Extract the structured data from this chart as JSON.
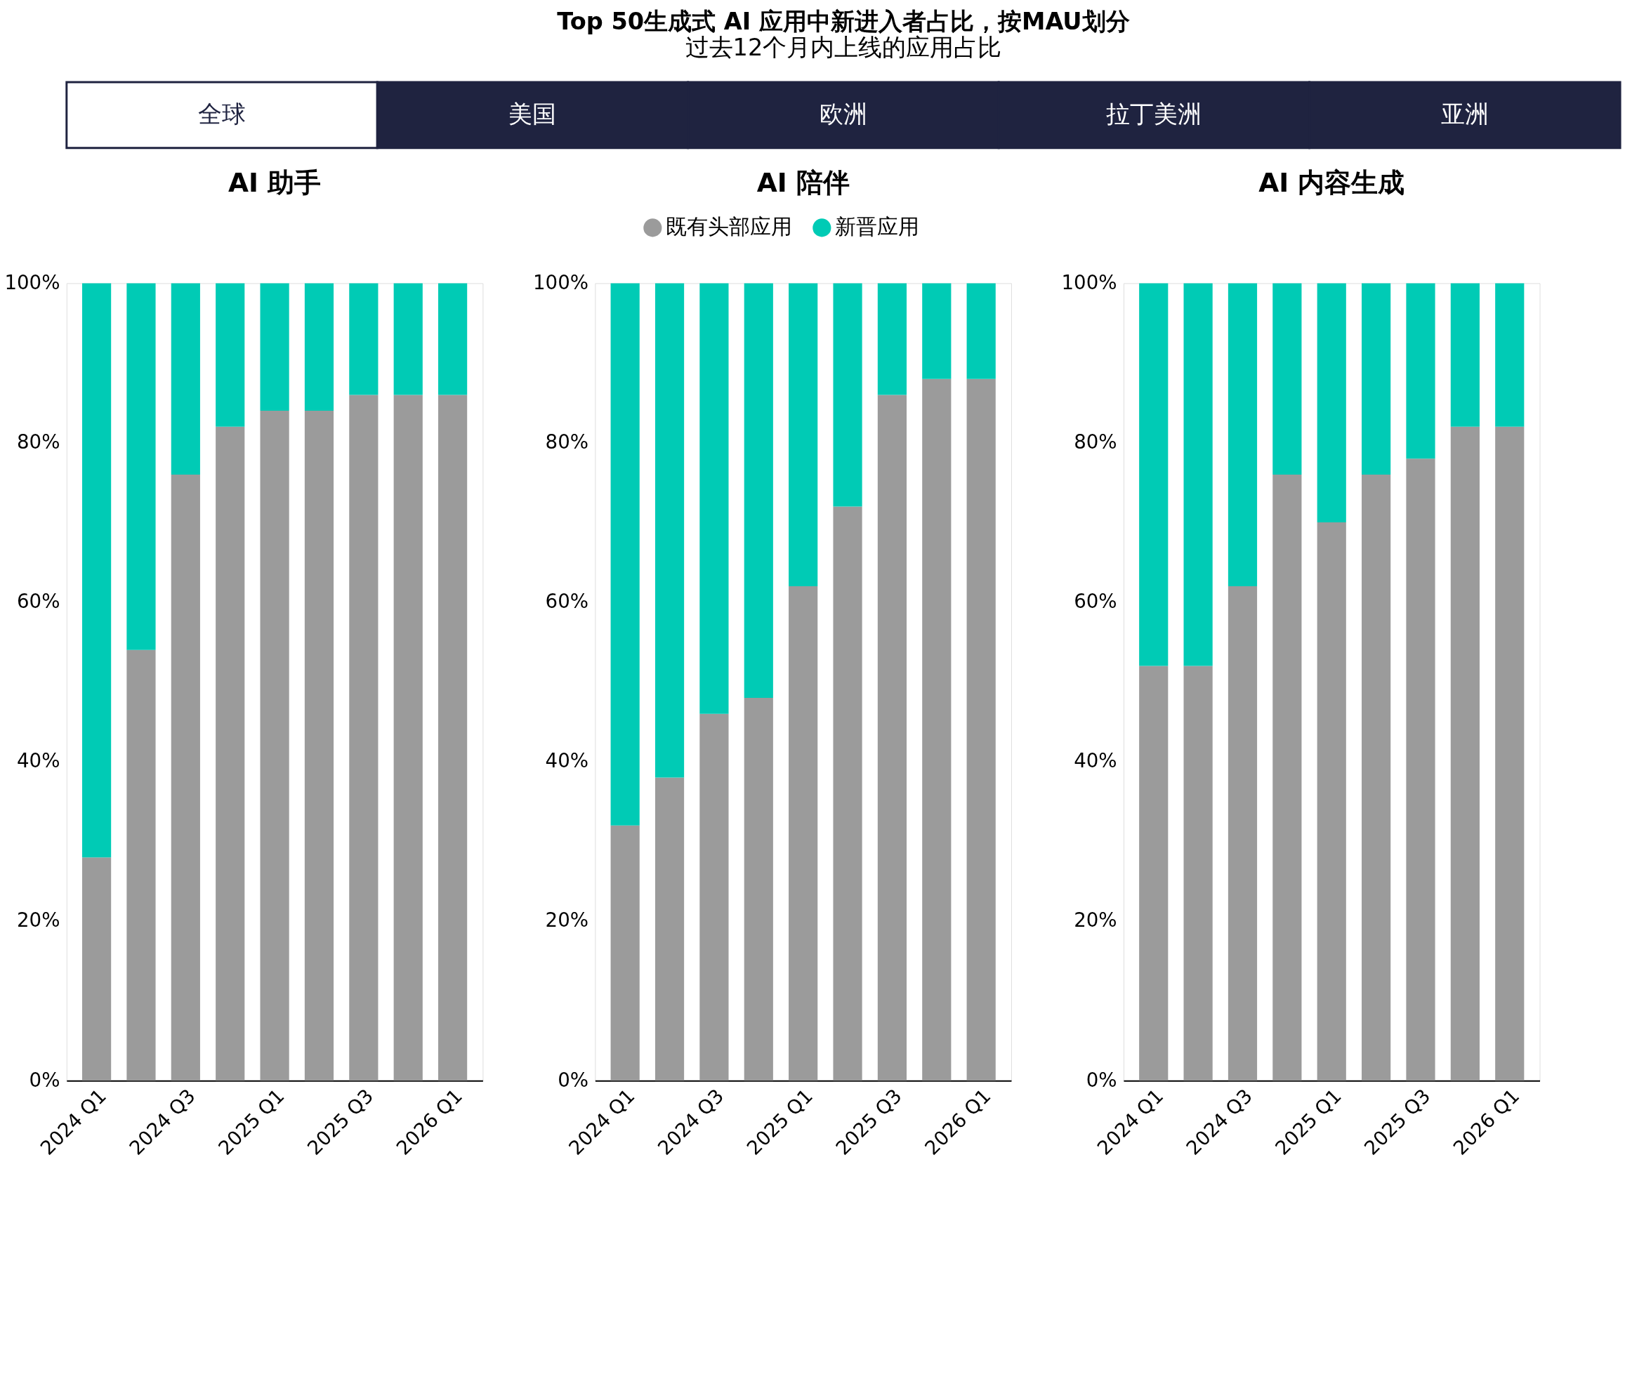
{
  "chart_data": [
    {
      "type": "other",
      "title": "Top 50生成式 AI 应用中新进入者占比，按MAU划分",
      "subtitle": "过去12个月内上线的应用占比",
      "annotations": [
        "全球",
        "美国",
        "欧洲",
        "拉丁美洲",
        "亚洲"
      ]
    },
    {
      "type": "bar",
      "title": "AI 助手",
      "stacked": true,
      "legend": "top",
      "categories": [
        "2024 Q1",
        null,
        "2024 Q3",
        null,
        "2025 Q1",
        null,
        "2025 Q3",
        null,
        "2026 Q1"
      ],
      "series": [
        {
          "name": "既有头部应用",
          "color": "#9b9b9b",
          "values": [
            28,
            54,
            76,
            82,
            84,
            84,
            86,
            86,
            86
          ]
        },
        {
          "name": "新晋应用",
          "color": "#00cbb5",
          "values": [
            72,
            46,
            24,
            18,
            16,
            16,
            14,
            14,
            14
          ]
        }
      ],
      "ylim": [
        0,
        100
      ],
      "yticks": [
        {
          "value": 0,
          "label": "0%"
        },
        {
          "value": 20,
          "label": "20%"
        },
        {
          "value": 40,
          "label": "40%"
        },
        {
          "value": 60,
          "label": "60%"
        },
        {
          "value": 80,
          "label": "80%"
        },
        {
          "value": 100,
          "label": "100%"
        }
      ],
      "grid": false
    },
    {
      "type": "bar",
      "title": "AI 陪伴",
      "stacked": true,
      "legend": "top",
      "categories": [
        "2024 Q1",
        null,
        "2024 Q3",
        null,
        "2025 Q1",
        null,
        "2025 Q3",
        null,
        "2026 Q1"
      ],
      "series": [
        {
          "name": "既有头部应用",
          "color": "#9b9b9b",
          "values": [
            32,
            38,
            46,
            48,
            62,
            72,
            86,
            88,
            88
          ]
        },
        {
          "name": "新晋应用",
          "color": "#00cbb5",
          "values": [
            68,
            62,
            54,
            52,
            38,
            28,
            14,
            12,
            12
          ]
        }
      ],
      "ylim": [
        0,
        100
      ],
      "yticks": [
        {
          "value": 0,
          "label": "0%"
        },
        {
          "value": 20,
          "label": "20%"
        },
        {
          "value": 40,
          "label": "40%"
        },
        {
          "value": 60,
          "label": "60%"
        },
        {
          "value": 80,
          "label": "80%"
        },
        {
          "value": 100,
          "label": "100%"
        }
      ],
      "grid": false
    },
    {
      "type": "bar",
      "title": "AI 内容生成",
      "stacked": true,
      "legend": "top",
      "categories": [
        "2024 Q1",
        null,
        "2024 Q3",
        null,
        "2025 Q1",
        null,
        "2025 Q3",
        null,
        "2026 Q1"
      ],
      "series": [
        {
          "name": "既有头部应用",
          "color": "#9b9b9b",
          "values": [
            52,
            52,
            62,
            76,
            70,
            76,
            78,
            82,
            82
          ]
        },
        {
          "name": "新晋应用",
          "color": "#00cbb5",
          "values": [
            48,
            48,
            38,
            24,
            30,
            24,
            22,
            18,
            18
          ]
        }
      ],
      "ylim": [
        0,
        100
      ],
      "yticks": [
        {
          "value": 0,
          "label": "0%"
        },
        {
          "value": 20,
          "label": "20%"
        },
        {
          "value": 40,
          "label": "40%"
        },
        {
          "value": 60,
          "label": "60%"
        },
        {
          "value": 80,
          "label": "80%"
        },
        {
          "value": 100,
          "label": "100%"
        }
      ],
      "grid": false
    }
  ]
}
